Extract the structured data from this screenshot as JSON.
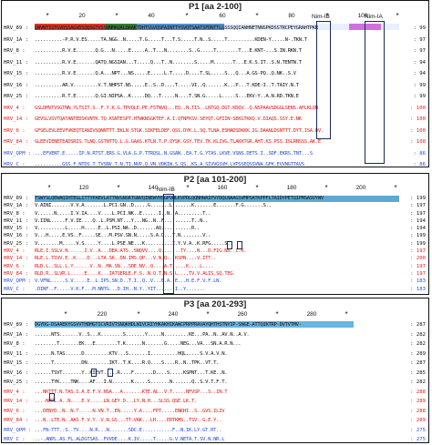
{
  "panels": [
    {
      "title": "P1 [aa 2-100]",
      "ruler": [
        {
          "t": "*",
          "x": 50
        },
        {
          "t": "20",
          "x": 88
        },
        {
          "t": "*",
          "x": 126
        },
        {
          "t": "40",
          "x": 164
        },
        {
          "t": "*",
          "x": 203
        },
        {
          "t": "60",
          "x": 242
        },
        {
          "t": "*",
          "x": 280
        },
        {
          "t": "80",
          "x": 318
        },
        {
          "t": "*",
          "x": 357
        },
        {
          "t": "100",
          "x": 396
        },
        {
          "t": "*",
          "x": 434
        }
      ],
      "nim": [
        {
          "label": "Nim-IB",
          "x": 350
        },
        {
          "label": "Nim-IA",
          "x": 408
        }
      ],
      "rows": [
        {
          "label": "HRV_89 :",
          "seq": "GNVNTISTGVQSSAGVDSQQSGTVSSNNMAQALDAAKTDHTSSVQSPAINTTYSVQTSAATSFDNTTLGSSSQQIANHNETNNSPKDSSTRCPEYGRAHTPKR",
          "end": ": 99",
          "color": "black",
          "highlights": [
            {
              "from": 0,
              "to": 78,
              "c": "#d83a2a"
            },
            {
              "from": 78,
              "to": 112,
              "c": "#3a7a3a"
            },
            {
              "from": 112,
              "to": 208,
              "c": "#5590c8"
            },
            {
              "from": 208,
              "to": 345,
              "c": "#e8f0ff"
            },
            {
              "from": 345,
              "to": 380,
              "c": "#d070e0"
            },
            {
              "from": 380,
              "to": 400,
              "c": "#e8f0ff"
            }
          ]
        },
        {
          "label": "HRV_1A :",
          "seq": "..........-P.R.V.ES.....TA.NGG..N.....T.G.....T...T.S.....T.N..S.....T..........KDEN-Y.....N-.TKN.T",
          "end": ": 97",
          "color": "black",
          "highlights": []
        },
        {
          "label": "HRV_8 :",
          "seq": "..........R.V.E.......Q.G...N.....E.....A..T...N........S..G.....T........T...E.KNT-...S.IN.RKN.T",
          "end": ": 97",
          "color": "black",
          "highlights": []
        },
        {
          "label": "HRV_11 :",
          "seq": "..........R.V.E.......QATQ.NGSIAN...T.....Q...T..N........S.....M.......T...E.K.S.IT..S.N.TENTN.T",
          "end": ": 94",
          "color": "black",
          "highlights": []
        },
        {
          "label": "HRV_15 :",
          "seq": "..........R.V.E.......Q.A...NPT...NS.....E.....L.T.....D....T.SL.....S...Q...A.GS-PQ..Q.NK..S.V",
          "end": ": 94",
          "color": "black",
          "highlights": []
        },
        {
          "label": "HRV_16 :",
          "seq": "..........AR.V.........V.T.NHPST.NS.....E..S..D....T.....VI..Q.......K...P...T.KDE-I..T.TAIY.N.T",
          "end": ": 99",
          "color": "black",
          "highlights": []
        },
        {
          "label": "HRV_25 :",
          "seq": "..........R.T.E.......Q.GI.NIPSA..K.....DQ...T.....N....T.SN.G.....L.....S...EKV-Y..A.N.RD.TKN.E",
          "end": ": 99",
          "color": "black",
          "highlights": []
        },
        {
          "label": "HRV_4 :",
          "seq": "GSLDMVTVSGTNN.YLTSIT.S..F.Y.K.G.TPVQLE.PE.FSTNVQ...EQ..N.TIS..LNTGQ.DGT.KDQV..Q.NSPAAVSDGGLSENS.AFLKLQN",
          "end": ": 100",
          "color": "red",
          "highlights": []
        },
        {
          "label": "HRV_14 :",
          "seq": "GEVSLVSVTQATANTEDSKVNTK.TQ.KSNTESPT.HTWKNSGKTEF.A.I.QTNFKSV.SEYQT.GFIIN-SEKGTKKQ.V.DIAQS.SSY.E.NK",
          "end": ": 100",
          "color": "red",
          "highlights": []
        },
        {
          "label": "HRV_6 :",
          "seq": "GFSELEVLEEVFVKEQTIANIVSQNNTTT.EKLN.STGK.SIKFELDEF.QSS.DYK.L.SQ.TLNA.ESMADSDKKK.IG.DAANLDSNTTT.DYT.ISA.DV.",
          "end": ": 100",
          "color": "red",
          "highlights": []
        },
        {
          "label": "HRV_84 :",
          "seq": "GLEEVIENETEADSRIS.TLNQ.GSTNTTQ.L.G.GAAS.KTLN.T.P.QYSK.GSY.TEV.TK.KLIVG.TLAKKTGR.AHT.KS.PSS.ISLRNSSS.AK.E",
          "end": ": 100",
          "color": "red",
          "highlights": []
        },
        {
          "label": "HRV_QPM :",
          "seq": "...EFVENT.E.....IP.N.RTST.ERS.G.VLA.G.P.TTRQSL.N.GSAN..EA.T.G.YTAS.LKVE.VSNS.DETS.I..SDF.EKRS.TNT...S",
          "end": ": 86",
          "color": "blue",
          "highlights": []
        },
        {
          "label": "HRV_C :",
          "seq": "..........GSS.F.NTDS.T.TVSNV.T.N.TI.NVP.Q.VN.VDKIW.S.QS..KS.A.SIVVGSVH.LVPSSEQSSVNA.GFK.EVVNGTTAVS",
          "end": ": 86",
          "color": "blue",
          "highlights": []
        }
      ]
    },
    {
      "title": "P2 [aa 101-200]",
      "ruler": [
        {
          "t": "*",
          "x": 52
        },
        {
          "t": "120",
          "x": 90
        },
        {
          "t": "*",
          "x": 128
        },
        {
          "t": "140",
          "x": 166
        },
        {
          "t": "*",
          "x": 204
        },
        {
          "t": "160",
          "x": 242
        },
        {
          "t": "*",
          "x": 280
        },
        {
          "t": "180",
          "x": 318
        },
        {
          "t": "*",
          "x": 356
        },
        {
          "t": "200",
          "x": 394
        },
        {
          "t": "*",
          "x": 432
        }
      ],
      "nim": [
        {
          "label": "Nim-IB",
          "x": 180
        }
      ],
      "rows": [
        {
          "label": "HRV_89 :",
          "seq": "TSWYSLQEWAQIHTEGLITTYPAEVLATTNVGNSKTGNVQINEWYHSGPVHLKVPDLQQNHWAIPVYDQLNAAGSVMPSATKPPFLTAIDYPETQIPMSASVYWV",
          "end": ": 199",
          "color": "black",
          "highlights": [
            {
              "from": 0,
              "to": 400,
              "c": "#5aaad8"
            }
          ]
        },
        {
          "label": "HRV_1A :",
          "seq": "V.AINI.......V.V.A.......L.PC1.GN..D.....G.......L.......K.......E.......F.G.......S..",
          "end": ": 197",
          "color": "black",
          "highlights": []
        },
        {
          "label": "HRV_8 :",
          "seq": "V......N.....I.V.IA....V....L.PCI.NK..E......I..N..A.........T..",
          "end": ": 197",
          "color": "black",
          "highlights": []
        },
        {
          "label": "HRV_11 :",
          "seq": "V.IINL.....F.V.IE....Q..L.PSM.NT...Y...NG..N..F..........T..N..",
          "end": ": 194",
          "color": "black",
          "highlights": []
        },
        {
          "label": "HRV_15 :",
          "seq": "V..........L.....H.....E..L.PSI.NA..D.......AQ...........R..",
          "end": ": 194",
          "color": "black",
          "highlights": []
        },
        {
          "label": "HRV_16 :",
          "seq": "V...H.....E.VS..F.....SE...M.PSV.SN.N.....S.A.Q...T.N........V..",
          "end": ": 199",
          "color": "black",
          "highlights": []
        },
        {
          "label": "HRV_25 :",
          "seq": "V........M.....V.S.....Y....L.PSE.NE...K..........I.Y.V.A..K.RFG.....S..",
          "end": ": 199",
          "color": "black",
          "highlights": []
        },
        {
          "label": "HRV_4 :",
          "seq": "RLE.I.SSLV.N......I.V..A...DEA.ATS..SNQVV....Q.......TY....N...D.FIG.NS..I.K.",
          "end": ": 197",
          "color": "red",
          "highlights": []
        },
        {
          "label": "HRV_14 :",
          "seq": "RLE.L.TSVV.E..K....D...LTA.SK..DN.IMS.QP...V.N.Q...KSPN....V.ITT..",
          "end": ": 200",
          "color": "red",
          "highlights": []
        },
        {
          "label": "HRV_6 :",
          "seq": "RLD.L..SLL.L.Y......V..N..MA.SN...SDE.NV..Q....A.T.....K....L....",
          "end": ": 197",
          "color": "red",
          "highlights": []
        },
        {
          "label": "HRV_84 :",
          "seq": "RLD.R..SLVR.L.....E....K...IATSERLE.F.S..N.Q.T.N.S.L....TV.V.ALIS.SQ.TEG.",
          "end": ": 197",
          "color": "red",
          "highlights": []
        },
        {
          "label": "HRV_QPM :",
          "seq": "V.VFNL.....S.V.....E..L.IPS.SN.D..T.I..Q..V...E.A..E...H.E.F.V.F.LN.",
          "end": ": 183",
          "color": "blue",
          "highlights": []
        },
        {
          "label": "HRV_C :",
          "seq": ".DINF..F.....V.K.F...M.NNTG...D.IH..N.Y..YIT.......I..Y.......",
          "end": ": 183",
          "color": "blue",
          "highlights": []
        }
      ]
    },
    {
      "title": "P3 [aa 201-293]",
      "ruler": [
        {
          "t": "*",
          "x": 70
        },
        {
          "t": "220",
          "x": 110
        },
        {
          "t": "*",
          "x": 150
        },
        {
          "t": "240",
          "x": 188
        },
        {
          "t": "*",
          "x": 226
        },
        {
          "t": "260",
          "x": 264
        },
        {
          "t": "*",
          "x": 302
        },
        {
          "t": "280",
          "x": 340
        },
        {
          "t": "*",
          "x": 378
        }
      ],
      "nim": [],
      "rows": [
        {
          "label": "HRV_89 :",
          "seq": "DGYDG-DSAAEKYGSVVTHDMGTICVRIVTSNQKHDLNIVCRIYHKAKHIKAWCPRPPRAVAYQHTHSTNYIP-SNGE-ATTQIKTRP-DVTVTMV-",
          "end": ": 287",
          "color": "black",
          "highlights": [
            {
              "from": 0,
              "to": 350,
              "c": "#6ab4e0"
            }
          ]
        },
        {
          "label": "HRV_1A :",
          "seq": "......NTS.......V..S...K........S.......Y.....N.........KE...PA..N..AV.N..A.V.",
          "end": ": 282",
          "color": "black",
          "highlights": []
        },
        {
          "label": "HRV_8 :",
          "seq": "........T.......EK...E........T.K......N.......G.....NEG...VA...SN.A.R.N...",
          "end": ": 282",
          "color": "black",
          "highlights": []
        },
        {
          "label": "HRV_11 :",
          "seq": "......N.TAS......D.........KTV...S.......I..........HQL.....S.V.A.V.N.",
          "end": ": 289",
          "color": "black",
          "highlights": []
        },
        {
          "label": "HRV_15 :",
          "seq": "......T..........DN........IKT..T.K....R.Q....S....R..N..TPK..VT.T.",
          "end": ": 287",
          "color": "black",
          "highlights": []
        },
        {
          "label": "HRV_16 :",
          "seq": "......TSVT.......Y..KIEVT.....R....F.......D....S.....KSPNT...T.KE..N.",
          "end": ": 285",
          "color": "black",
          "highlights": []
        },
        {
          "label": "HRV_25 :",
          "seq": "......TYK....TNK....AF...I.N.......K.....S.......N.......Q..S.V.T.F.T.",
          "end": ": 282",
          "color": "black",
          "highlights": []
        },
        {
          "label": "HRV_4 :",
          "seq": "...NKTTT.N.TAS.S.A.E.F.V.NSA...A.......KTE.AL..V.T.....NFVSP...S..IN.T",
          "end": ": 288",
          "color": "red",
          "highlights": []
        },
        {
          "label": "HRV_14 :",
          "seq": "...-NPPL.A..N....E.V.....LN.GEY.D...LY.N.H...SLSS.QSE.LK.T.",
          "end": ": 289",
          "color": "red",
          "highlights": []
        },
        {
          "label": "HRV_6 :",
          "seq": "...DENYD..N..N.T.....N.VN.T..EN.....Y.A....FPT.....ENKHI..S..GVS.ILIV",
          "end": ": 288",
          "color": "red",
          "highlights": []
        },
        {
          "label": "HRV_84 :",
          "seq": "...N..LTE.N..AAS.F.V.Y..V.N.GS...TT.VAK...LH....ERTKMS..TSV..G.E.Y..",
          "end": ": 289",
          "color": "red",
          "highlights": []
        },
        {
          "label": "HRV_QPM :",
          "seq": "...FN-TTT..S..TV....N.R...N.......SDC.E...........F..N.IK.LY.GT.RT..",
          "end": ": 275",
          "color": "blue",
          "highlights": []
        },
        {
          "label": "HRV_C :",
          "seq": "..-.ANPL.AS.FL.ALDGTSAS..FVVDE....K.IV.....T.....G.V.NETA.T.SV.N.NR.L",
          "end": ": 275",
          "color": "blue",
          "highlights": []
        }
      ]
    }
  ]
}
